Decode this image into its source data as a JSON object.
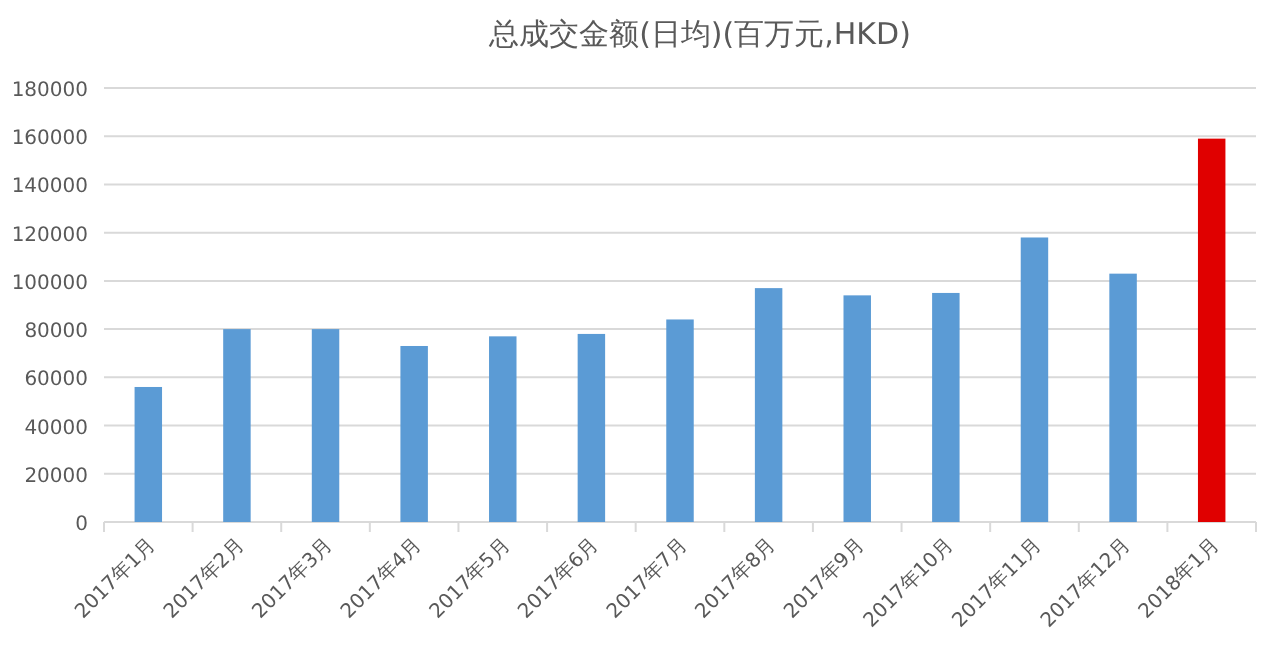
{
  "chart_data": {
    "type": "bar",
    "title": "总成交金额(日均)(百万元,HKD)",
    "categories": [
      "2017年1月",
      "2017年2月",
      "2017年3月",
      "2017年4月",
      "2017年5月",
      "2017年6月",
      "2017年7月",
      "2017年8月",
      "2017年9月",
      "2017年10月",
      "2017年11月",
      "2017年12月",
      "2018年1月"
    ],
    "values": [
      56000,
      80000,
      80000,
      73000,
      77000,
      78000,
      84000,
      97000,
      94000,
      95000,
      118000,
      103000,
      159000
    ],
    "colors": [
      "#5b9bd5",
      "#5b9bd5",
      "#5b9bd5",
      "#5b9bd5",
      "#5b9bd5",
      "#5b9bd5",
      "#5b9bd5",
      "#5b9bd5",
      "#5b9bd5",
      "#5b9bd5",
      "#5b9bd5",
      "#5b9bd5",
      "#e00000"
    ],
    "ylim": [
      0,
      180000
    ],
    "yticks": [
      0,
      20000,
      40000,
      60000,
      80000,
      100000,
      120000,
      140000,
      160000,
      180000
    ],
    "grid": "y"
  }
}
